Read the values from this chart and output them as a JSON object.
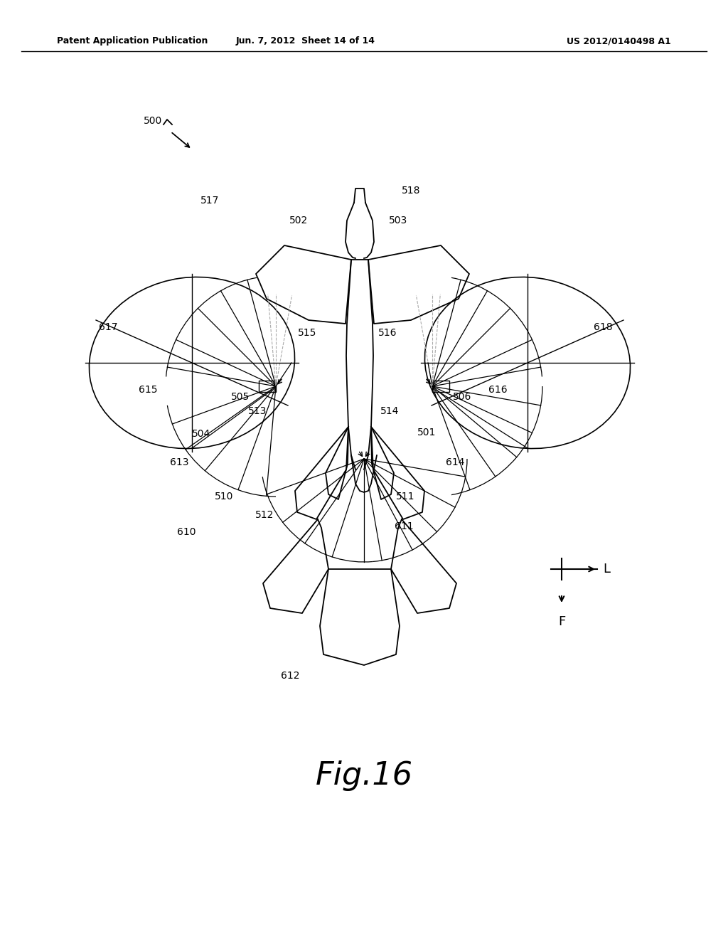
{
  "title": "Fig.16",
  "header_left": "Patent Application Publication",
  "header_center": "Jun. 7, 2012  Sheet 14 of 14",
  "header_right": "US 2012/0140498 A1",
  "bg_color": "#ffffff",
  "line_color": "#000000",
  "dashed_color": "#aaaaaa",
  "fig_width": 10.24,
  "fig_height": 13.2,
  "dpi": 100
}
